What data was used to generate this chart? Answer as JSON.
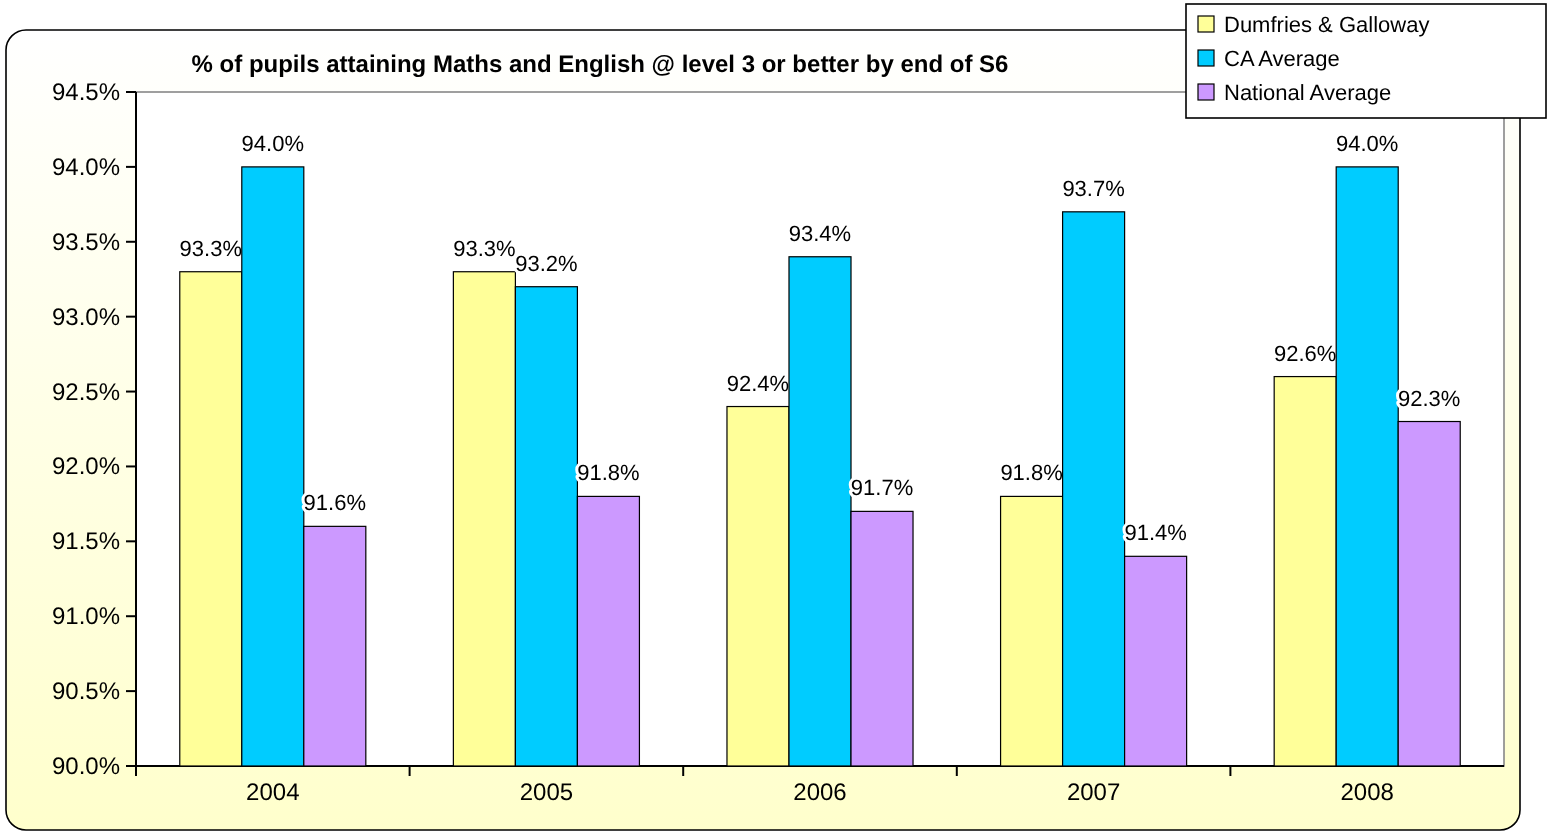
{
  "chart_data": {
    "type": "bar",
    "title": "% of pupils attaining Maths and English @ level 3 or better by end of S6",
    "categories": [
      "2004",
      "2005",
      "2006",
      "2007",
      "2008"
    ],
    "series": [
      {
        "name": "Dumfries & Galloway",
        "color": "#ffff99",
        "values": [
          93.3,
          93.3,
          92.4,
          91.8,
          92.6
        ],
        "value_labels": [
          "93.3%",
          "93.3%",
          "92.4%",
          "91.8%",
          "92.6%"
        ]
      },
      {
        "name": "CA Average",
        "color": "#00ccff",
        "values": [
          94.0,
          93.2,
          93.4,
          93.7,
          94.0
        ],
        "value_labels": [
          "94.0%",
          "93.2%",
          "93.4%",
          "93.7%",
          "94.0%"
        ]
      },
      {
        "name": "National Average",
        "color": "#cc99ff",
        "values": [
          91.6,
          91.8,
          91.7,
          91.4,
          92.3
        ],
        "value_labels": [
          "91.6%",
          "91.8%",
          "91.7%",
          "91.4%",
          "92.3%"
        ]
      }
    ],
    "ylim": [
      90.0,
      94.5
    ],
    "yticks": [
      {
        "value": 90.0,
        "label": "90.0%"
      },
      {
        "value": 90.5,
        "label": "90.5%"
      },
      {
        "value": 91.0,
        "label": "91.0%"
      },
      {
        "value": 91.5,
        "label": "91.5%"
      },
      {
        "value": 92.0,
        "label": "92.0%"
      },
      {
        "value": 92.5,
        "label": "92.5%"
      },
      {
        "value": 93.0,
        "label": "93.0%"
      },
      {
        "value": 93.5,
        "label": "93.5%"
      },
      {
        "value": 94.0,
        "label": "94.0%"
      },
      {
        "value": 94.5,
        "label": "94.5%"
      }
    ],
    "legend": "top right"
  }
}
